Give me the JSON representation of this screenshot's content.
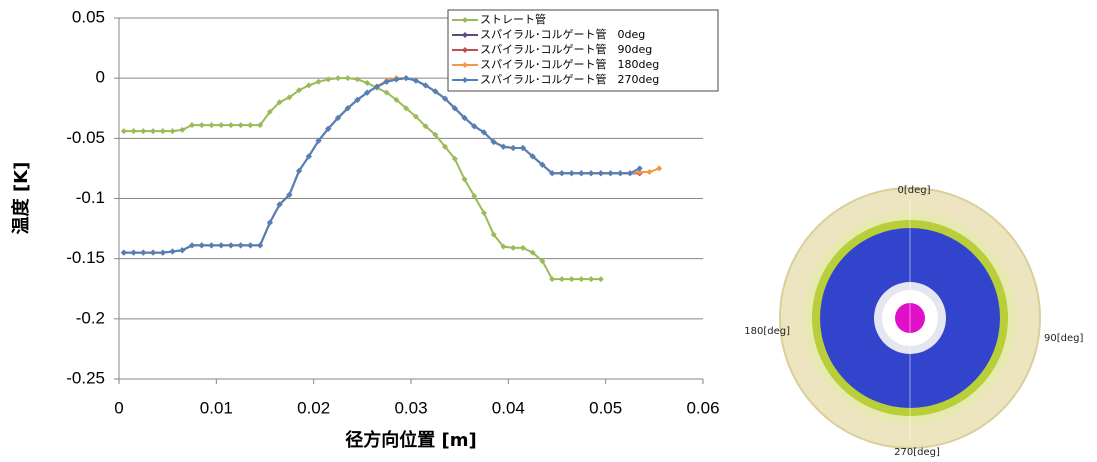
{
  "chart_data": {
    "type": "line",
    "xlabel": "径方向位置 [m]",
    "ylabel": "温度 [K]",
    "xlim": [
      0,
      0.06
    ],
    "xticks": [
      0,
      0.01,
      0.02,
      0.03,
      0.04,
      0.05,
      0.06
    ],
    "ylim": [
      -0.25,
      0.05
    ],
    "yticks": [
      0.05,
      0,
      -0.05,
      -0.1,
      -0.15,
      -0.2,
      -0.25
    ],
    "grid": true,
    "legend": "upper right",
    "x": [
      0.0005,
      0.0015,
      0.0025,
      0.0035,
      0.0045,
      0.0055,
      0.0065,
      0.0075,
      0.0085,
      0.0095,
      0.0105,
      0.0115,
      0.0125,
      0.0135,
      0.0145,
      0.0155,
      0.0165,
      0.0175,
      0.0185,
      0.0195,
      0.0205,
      0.0215,
      0.0225,
      0.0235,
      0.0245,
      0.0255,
      0.0265,
      0.0275,
      0.0285,
      0.0295,
      0.0305,
      0.0315,
      0.0325,
      0.0335,
      0.0345,
      0.0355,
      0.0365,
      0.0375,
      0.0385,
      0.0395,
      0.0405,
      0.0415,
      0.0425,
      0.0435,
      0.0445,
      0.0455,
      0.0465,
      0.0475,
      0.0485,
      0.0495,
      0.0505,
      0.0515,
      0.0525,
      0.0535,
      0.0545,
      0.0555
    ],
    "series": [
      {
        "name": "ストレート管",
        "color": "#9bbb59",
        "values": [
          -0.044,
          -0.044,
          -0.044,
          -0.044,
          -0.044,
          -0.044,
          -0.043,
          -0.039,
          -0.039,
          -0.039,
          -0.039,
          -0.039,
          -0.039,
          -0.039,
          -0.039,
          -0.028,
          -0.02,
          -0.016,
          -0.01,
          -0.006,
          -0.003,
          -0.001,
          0,
          0,
          -0.001,
          -0.004,
          -0.008,
          -0.012,
          -0.018,
          -0.025,
          -0.032,
          -0.04,
          -0.047,
          -0.057,
          -0.067,
          -0.084,
          -0.098,
          -0.112,
          -0.13,
          -0.14,
          -0.141,
          -0.141,
          -0.145,
          -0.152,
          -0.167,
          -0.167,
          -0.167,
          -0.167,
          -0.167,
          -0.167,
          null,
          null,
          null,
          null,
          null,
          null
        ]
      },
      {
        "name": "スパイラル･コルゲート管　0deg",
        "color": "#604a7b",
        "values": [
          -0.145,
          -0.145,
          -0.145,
          -0.145,
          -0.145,
          -0.144,
          -0.143,
          -0.139,
          -0.139,
          -0.139,
          -0.139,
          -0.139,
          -0.139,
          -0.139,
          -0.139,
          -0.12,
          -0.105,
          -0.097,
          -0.077,
          -0.065,
          -0.052,
          -0.042,
          -0.033,
          -0.025,
          -0.018,
          -0.012,
          -0.007,
          -0.003,
          -0.001,
          0,
          -0.002,
          -0.006,
          -0.011,
          -0.017,
          -0.025,
          -0.033,
          -0.04,
          -0.045,
          -0.053,
          -0.057,
          -0.058,
          -0.058,
          -0.065,
          -0.072,
          -0.079,
          -0.079,
          -0.079,
          -0.079,
          -0.079,
          -0.079,
          -0.079,
          -0.079,
          -0.079,
          -0.079,
          null,
          null
        ]
      },
      {
        "name": "スパイラル･コルゲート管　90deg",
        "color": "#c0504d",
        "values": [
          -0.145,
          -0.145,
          -0.145,
          -0.145,
          -0.145,
          -0.144,
          -0.143,
          -0.139,
          -0.139,
          -0.139,
          -0.139,
          -0.139,
          -0.139,
          -0.139,
          -0.139,
          -0.12,
          -0.105,
          -0.097,
          -0.077,
          -0.065,
          -0.052,
          -0.042,
          -0.033,
          -0.025,
          -0.018,
          -0.012,
          -0.007,
          -0.003,
          -0.001,
          0,
          -0.002,
          -0.006,
          -0.011,
          -0.017,
          -0.025,
          -0.033,
          -0.04,
          -0.045,
          -0.053,
          -0.057,
          -0.058,
          -0.058,
          -0.065,
          -0.072,
          -0.079,
          -0.079,
          -0.079,
          -0.079,
          -0.079,
          -0.079,
          -0.079,
          -0.079,
          -0.079,
          -0.079,
          null,
          null
        ]
      },
      {
        "name": "スパイラル･コルゲート管　180deg",
        "color": "#f79646",
        "values": [
          -0.145,
          -0.145,
          -0.145,
          -0.145,
          -0.145,
          -0.144,
          -0.143,
          -0.139,
          -0.139,
          -0.139,
          -0.139,
          -0.139,
          -0.139,
          -0.139,
          -0.139,
          -0.12,
          -0.105,
          -0.097,
          -0.077,
          -0.065,
          -0.052,
          -0.042,
          -0.033,
          -0.025,
          -0.018,
          -0.012,
          -0.007,
          -0.002,
          0,
          0,
          -0.002,
          -0.006,
          -0.011,
          -0.017,
          -0.025,
          -0.033,
          -0.04,
          -0.045,
          -0.053,
          -0.057,
          -0.058,
          -0.058,
          -0.065,
          -0.072,
          -0.079,
          -0.079,
          -0.079,
          -0.079,
          -0.079,
          -0.079,
          -0.079,
          -0.079,
          -0.079,
          -0.078,
          -0.078,
          -0.075
        ]
      },
      {
        "name": "スパイラル･コルゲート管　270deg",
        "color": "#4f81bd",
        "values": [
          -0.145,
          -0.145,
          -0.145,
          -0.145,
          -0.145,
          -0.144,
          -0.143,
          -0.139,
          -0.139,
          -0.139,
          -0.139,
          -0.139,
          -0.139,
          -0.139,
          -0.139,
          -0.12,
          -0.105,
          -0.097,
          -0.077,
          -0.065,
          -0.052,
          -0.042,
          -0.033,
          -0.025,
          -0.018,
          -0.012,
          -0.007,
          -0.003,
          -0.001,
          0,
          -0.002,
          -0.006,
          -0.011,
          -0.017,
          -0.025,
          -0.033,
          -0.04,
          -0.045,
          -0.053,
          -0.057,
          -0.058,
          -0.058,
          -0.065,
          -0.072,
          -0.079,
          -0.079,
          -0.079,
          -0.079,
          -0.079,
          -0.079,
          -0.079,
          -0.079,
          -0.079,
          -0.075,
          null,
          null
        ]
      }
    ]
  },
  "diagram": {
    "labels": [
      "0[deg]",
      "90[deg]",
      "180[deg]",
      "270[deg]"
    ]
  }
}
